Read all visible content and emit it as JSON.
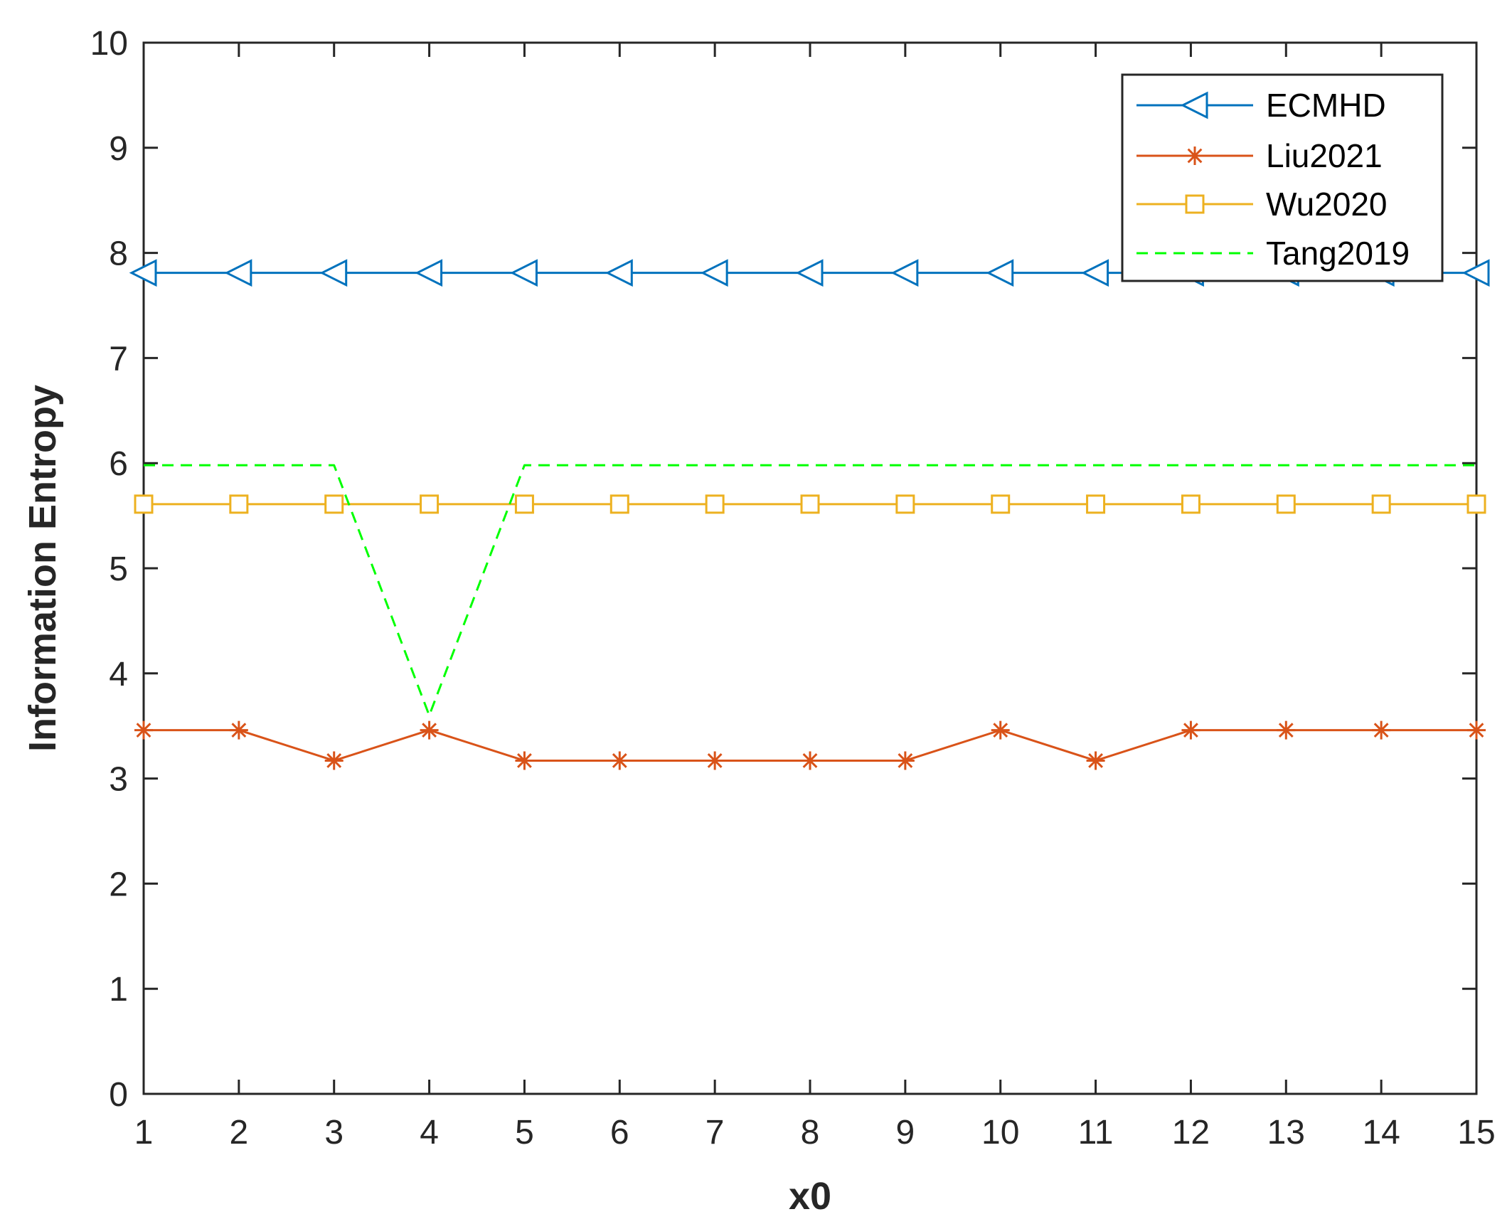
{
  "chart_data": {
    "type": "line",
    "xlabel": "x0",
    "ylabel": "Information Entropy",
    "xlim": [
      1,
      15
    ],
    "ylim": [
      0,
      10
    ],
    "x": [
      1,
      2,
      3,
      4,
      5,
      6,
      7,
      8,
      9,
      10,
      11,
      12,
      13,
      14,
      15
    ],
    "x_ticks": [
      "1",
      "2",
      "3",
      "4",
      "5",
      "6",
      "7",
      "8",
      "9",
      "10",
      "11",
      "12",
      "13",
      "14",
      "15"
    ],
    "y_ticks": [
      "0",
      "1",
      "2",
      "3",
      "4",
      "5",
      "6",
      "7",
      "8",
      "9",
      "10"
    ],
    "grid": false,
    "legend_position": "top-right",
    "series": [
      {
        "name": "ECMHD",
        "color": "#0072BD",
        "marker": "triangle-left",
        "dash": "solid",
        "values": [
          7.81,
          7.81,
          7.81,
          7.81,
          7.81,
          7.81,
          7.81,
          7.81,
          7.81,
          7.81,
          7.81,
          7.81,
          7.81,
          7.81,
          7.81
        ]
      },
      {
        "name": "Liu2021",
        "color": "#D95319",
        "marker": "asterisk",
        "dash": "solid",
        "values": [
          3.46,
          3.46,
          3.17,
          3.46,
          3.17,
          3.17,
          3.17,
          3.17,
          3.17,
          3.46,
          3.17,
          3.46,
          3.46,
          3.46,
          3.46
        ]
      },
      {
        "name": "Wu2020",
        "color": "#EDB120",
        "marker": "square",
        "dash": "solid",
        "values": [
          5.61,
          5.61,
          5.61,
          5.61,
          5.61,
          5.61,
          5.61,
          5.61,
          5.61,
          5.61,
          5.61,
          5.61,
          5.61,
          5.61,
          5.61
        ]
      },
      {
        "name": "Tang2019",
        "color": "#00FF00",
        "marker": "none",
        "dash": "dashed",
        "values": [
          5.98,
          5.98,
          5.98,
          3.6,
          5.98,
          5.98,
          5.98,
          5.98,
          5.98,
          5.98,
          5.98,
          5.98,
          5.98,
          5.98,
          5.98
        ]
      }
    ]
  }
}
